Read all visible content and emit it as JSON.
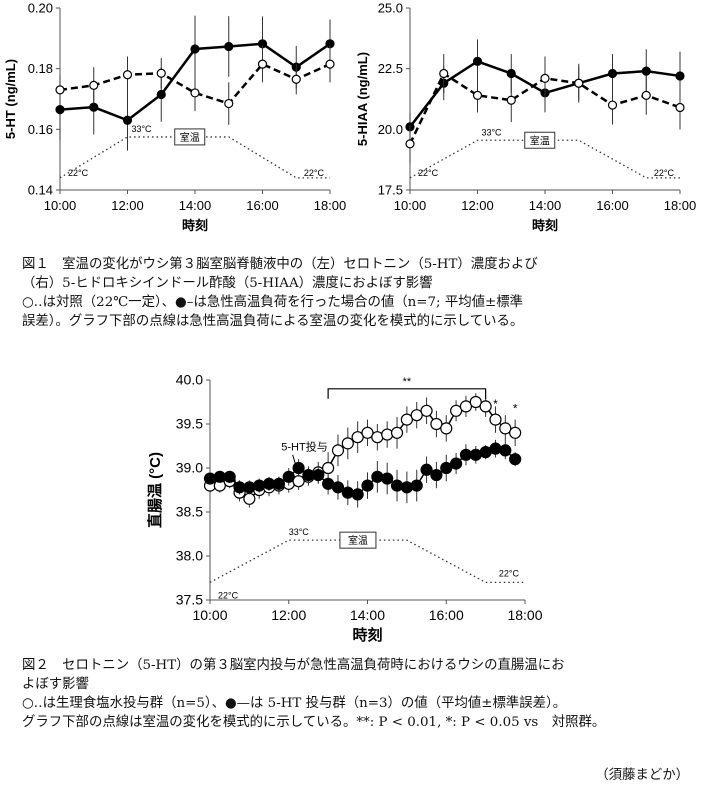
{
  "chart_data": [
    {
      "type": "line",
      "title": "",
      "xlabel": "時刻",
      "ylabel": "5-HT (ng/mL)",
      "xlim": [
        10,
        18
      ],
      "ylim": [
        0.14,
        0.2
      ],
      "xticks": [
        "10:00",
        "12:00",
        "14:00",
        "16:00",
        "18:00"
      ],
      "yticks": [
        "0.14",
        "0.16",
        "0.18",
        "0.20"
      ],
      "grid": false,
      "series": [
        {
          "style": "solid-filled-circle",
          "x": [
            10,
            11,
            12,
            13,
            14,
            15,
            16,
            17,
            18
          ],
          "y": [
            0.1665,
            0.1673,
            0.163,
            0.1715,
            0.1865,
            0.1873,
            0.1882,
            0.1805,
            0.1882
          ],
          "err": [
            0.01,
            0.009,
            0.01,
            0.009,
            0.011,
            0.01,
            0.009,
            0.007,
            0.008
          ]
        },
        {
          "style": "dashed-open-circle",
          "x": [
            10,
            11,
            12,
            13,
            14,
            15,
            16,
            17,
            18
          ],
          "y": [
            0.173,
            0.1745,
            0.178,
            0.1785,
            0.172,
            0.1685,
            0.1815,
            0.1765,
            0.1815
          ],
          "err": [
            0.005,
            0.006,
            0.006,
            0.005,
            0.006,
            0.007,
            0.006,
            0.005,
            0.006
          ]
        }
      ],
      "room_temp": {
        "x": [
          10,
          12,
          15,
          17,
          18
        ],
        "y": [
          0.144,
          0.1575,
          0.1575,
          0.144,
          0.144
        ]
      },
      "annotations": {
        "peak": "33°C",
        "base_left": "22°C",
        "base_right": "22°C",
        "box": "室温"
      }
    },
    {
      "type": "line",
      "title": "",
      "xlabel": "時刻",
      "ylabel": "5-HIAA (ng/mL)",
      "xlim": [
        10,
        18
      ],
      "ylim": [
        17.5,
        25.0
      ],
      "xticks": [
        "10:00",
        "12:00",
        "14:00",
        "16:00",
        "18:00"
      ],
      "yticks": [
        "17.5",
        "20.0",
        "22.5",
        "25.0"
      ],
      "grid": false,
      "series": [
        {
          "style": "solid-filled-circle",
          "x": [
            10,
            11,
            12,
            13,
            14,
            15,
            16,
            17,
            18
          ],
          "y": [
            20.1,
            21.9,
            22.8,
            22.3,
            21.5,
            21.9,
            22.3,
            22.4,
            22.2
          ],
          "err": [
            0.6,
            0.7,
            0.9,
            0.8,
            0.8,
            0.7,
            0.8,
            0.9,
            1.0
          ]
        },
        {
          "style": "dashed-open-circle",
          "x": [
            10,
            11,
            12,
            13,
            14,
            15,
            16,
            17,
            18
          ],
          "y": [
            19.4,
            22.3,
            21.4,
            21.2,
            22.1,
            21.9,
            21.0,
            21.4,
            20.9
          ],
          "err": [
            0.8,
            0.8,
            0.7,
            0.9,
            0.9,
            0.8,
            0.8,
            0.8,
            0.9
          ]
        }
      ],
      "room_temp": {
        "x": [
          10,
          12,
          15,
          17,
          18
        ],
        "y": [
          18.0,
          19.55,
          19.55,
          18.0,
          18.0
        ]
      },
      "annotations": {
        "peak": "33°C",
        "base_left": "22°C",
        "base_right": "22°C",
        "box": "室温"
      }
    },
    {
      "type": "line",
      "title": "",
      "xlabel": "時刻",
      "ylabel": "直腸温 (°C)",
      "xlim": [
        10,
        18
      ],
      "ylim": [
        37.5,
        40.0
      ],
      "xticks": [
        "10:00",
        "12:00",
        "14:00",
        "16:00",
        "18:00"
      ],
      "yticks": [
        "37.5",
        "38.0",
        "38.5",
        "39.0",
        "39.5",
        "40.0"
      ],
      "grid": false,
      "series": [
        {
          "style": "open-circle",
          "x": [
            10,
            10.25,
            10.5,
            10.75,
            11,
            11.25,
            11.5,
            11.75,
            12,
            12.25,
            12.5,
            12.75,
            13,
            13.25,
            13.5,
            13.75,
            14,
            14.25,
            14.5,
            14.75,
            15,
            15.25,
            15.5,
            15.75,
            16,
            16.25,
            16.5,
            16.75,
            17,
            17.25,
            17.5,
            17.75
          ],
          "y": [
            38.8,
            38.8,
            38.85,
            38.72,
            38.65,
            38.75,
            38.78,
            38.8,
            38.82,
            38.85,
            38.9,
            38.95,
            39.0,
            39.2,
            39.28,
            39.35,
            39.4,
            39.35,
            39.38,
            39.4,
            39.55,
            39.6,
            39.65,
            39.5,
            39.45,
            39.65,
            39.7,
            39.75,
            39.7,
            39.55,
            39.45,
            39.4
          ],
          "err": [
            0.08,
            0.08,
            0.08,
            0.1,
            0.1,
            0.1,
            0.1,
            0.1,
            0.1,
            0.1,
            0.1,
            0.12,
            0.18,
            0.18,
            0.18,
            0.18,
            0.15,
            0.15,
            0.15,
            0.18,
            0.15,
            0.15,
            0.15,
            0.15,
            0.15,
            0.12,
            0.12,
            0.1,
            0.12,
            0.15,
            0.15,
            0.15
          ]
        },
        {
          "style": "filled-circle",
          "x": [
            10,
            10.25,
            10.5,
            10.75,
            11,
            11.25,
            11.5,
            11.75,
            12,
            12.25,
            12.5,
            12.75,
            13,
            13.25,
            13.5,
            13.75,
            14,
            14.25,
            14.5,
            14.75,
            15,
            15.25,
            15.5,
            15.75,
            16,
            16.25,
            16.5,
            16.75,
            17,
            17.25,
            17.5,
            17.75
          ],
          "y": [
            38.88,
            38.9,
            38.9,
            38.78,
            38.78,
            38.8,
            38.82,
            38.82,
            38.9,
            39.0,
            38.92,
            38.92,
            38.82,
            38.78,
            38.72,
            38.7,
            38.8,
            38.9,
            38.88,
            38.8,
            38.78,
            38.8,
            38.98,
            38.92,
            39.0,
            39.05,
            39.15,
            39.15,
            39.18,
            39.22,
            39.2,
            39.1
          ],
          "err": [
            0.06,
            0.06,
            0.06,
            0.08,
            0.08,
            0.08,
            0.08,
            0.08,
            0.1,
            0.1,
            0.1,
            0.1,
            0.12,
            0.14,
            0.14,
            0.15,
            0.15,
            0.18,
            0.18,
            0.18,
            0.18,
            0.18,
            0.15,
            0.15,
            0.15,
            0.12,
            0.12,
            0.1,
            0.08,
            0.1,
            0.1,
            0.08
          ]
        }
      ],
      "room_temp": {
        "x": [
          10,
          12,
          15,
          17,
          18
        ],
        "y": [
          37.7,
          38.18,
          38.18,
          37.7,
          37.7
        ]
      },
      "annotations": {
        "peak": "33°C",
        "base_left": "22°C",
        "base_right": "22°C",
        "box": "室温",
        "injection": "5-HT投与",
        "sig_bracket": "**",
        "star1": "*",
        "star2": "*",
        "bracket_x": [
          13,
          17
        ]
      }
    }
  ],
  "captions": {
    "fig1_line1": "図１　室温の変化がウシ第３脳室脳脊髄液中の（左）セロトニン（5-HT）濃度および",
    "fig1_line2": "（右）5-ヒドロキシインドール酢酸（5-HIAA）濃度におよぼす影響",
    "fig1_line3": "○‥は対照（22℃一定）、●–は急性高温負荷を行った場合の値（n=7; 平均値±標準",
    "fig1_line4": "誤差）。グラフ下部の点線は急性高温負荷による室温の変化を模式的に示している。",
    "fig2_line1": "図２　セロトニン（5-HT）の第３脳室内投与が急性高温負荷時におけるウシの直腸温にお",
    "fig2_line2": "よぼす影響",
    "fig2_line3": "○‥は生理食塩水投与群（n=5）、●—は 5-HT 投与群（n=3）の値（平均値±標準誤差）。",
    "fig2_line4": "グラフ下部の点線は室温の変化を模式的に示している。**: P < 0.01, *: P < 0.05 vs　対照群。"
  },
  "author": "（須藤まどか）"
}
